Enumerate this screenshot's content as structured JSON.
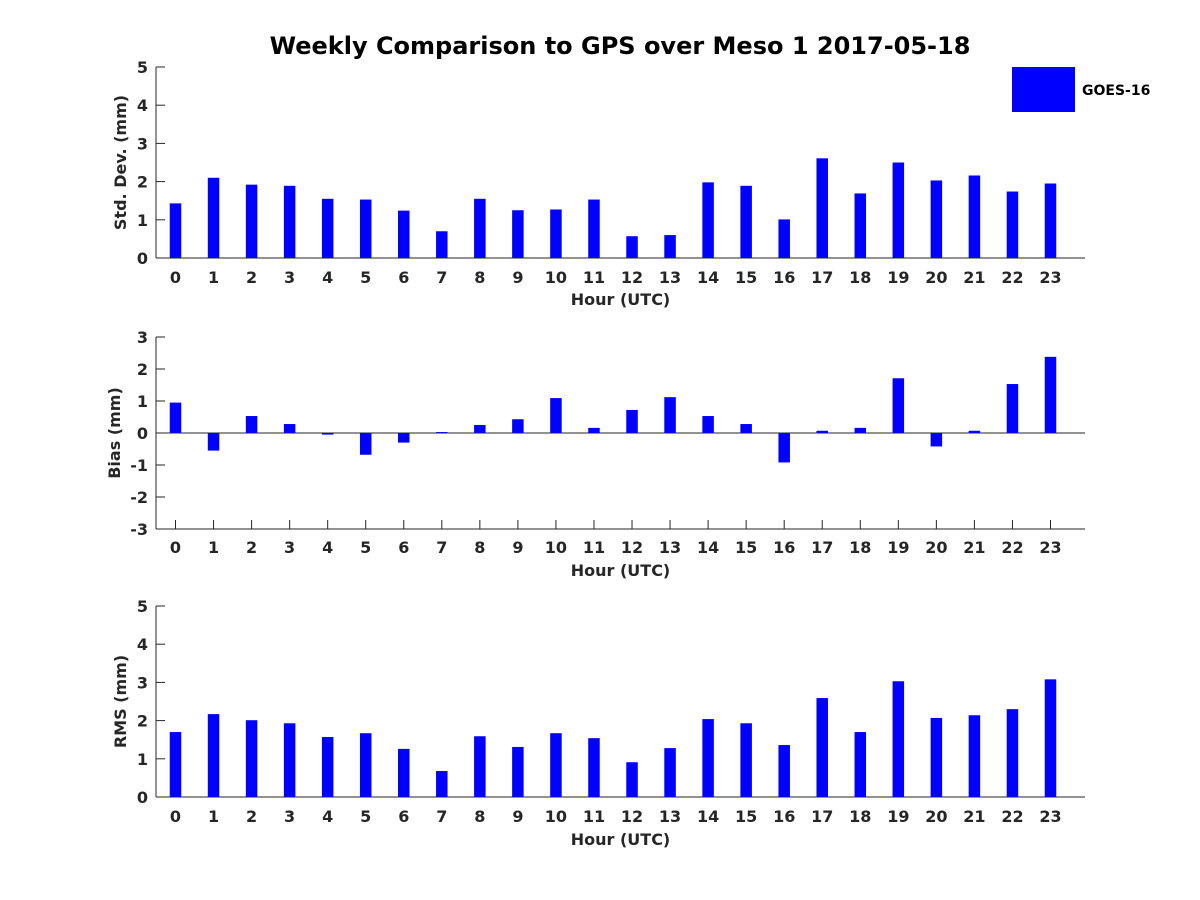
{
  "chart_data": {
    "title": "Weekly Comparison to GPS over Meso 1 2017-05-18",
    "legend": {
      "entries": [
        "GOES-16"
      ],
      "placement": "top-right"
    },
    "colors": {
      "series": "#0000ff",
      "axis": "#262626"
    },
    "panels": [
      {
        "id": "std",
        "type": "bar",
        "title": "",
        "xlabel": "Hour (UTC)",
        "ylabel": "Std. Dev. (mm)",
        "ylim": [
          0,
          5
        ],
        "yticks": [
          0,
          1,
          2,
          3,
          4,
          5
        ],
        "categories": [
          "0",
          "1",
          "2",
          "3",
          "4",
          "5",
          "6",
          "7",
          "8",
          "9",
          "10",
          "11",
          "12",
          "13",
          "14",
          "15",
          "16",
          "17",
          "18",
          "19",
          "20",
          "21",
          "22",
          "23"
        ],
        "series": [
          {
            "name": "GOES-16",
            "values": [
              1.43,
              2.1,
              1.92,
              1.89,
              1.55,
              1.53,
              1.24,
              0.7,
              1.55,
              1.25,
              1.27,
              1.53,
              0.57,
              0.6,
              1.98,
              1.89,
              1.01,
              2.61,
              1.69,
              2.5,
              2.03,
              2.16,
              1.74,
              1.95
            ]
          }
        ]
      },
      {
        "id": "bias",
        "type": "bar",
        "title": "",
        "xlabel": "Hour (UTC)",
        "ylabel": "Bias (mm)",
        "ylim": [
          -3,
          3
        ],
        "yticks": [
          -3,
          -2,
          -1,
          0,
          1,
          2,
          3
        ],
        "categories": [
          "0",
          "1",
          "2",
          "3",
          "4",
          "5",
          "6",
          "7",
          "8",
          "9",
          "10",
          "11",
          "12",
          "13",
          "14",
          "15",
          "16",
          "17",
          "18",
          "19",
          "20",
          "21",
          "22",
          "23"
        ],
        "series": [
          {
            "name": "GOES-16",
            "values": [
              0.95,
              -0.55,
              0.53,
              0.28,
              -0.05,
              -0.68,
              -0.3,
              0.03,
              0.25,
              0.43,
              1.09,
              0.16,
              0.72,
              1.12,
              0.53,
              0.28,
              -0.92,
              0.07,
              0.16,
              1.71,
              -0.42,
              0.07,
              1.53,
              2.38
            ]
          }
        ]
      },
      {
        "id": "rms",
        "type": "bar",
        "title": "",
        "xlabel": "Hour (UTC)",
        "ylabel": "RMS (mm)",
        "ylim": [
          0,
          5
        ],
        "yticks": [
          0,
          1,
          2,
          3,
          4,
          5
        ],
        "categories": [
          "0",
          "1",
          "2",
          "3",
          "4",
          "5",
          "6",
          "7",
          "8",
          "9",
          "10",
          "11",
          "12",
          "13",
          "14",
          "15",
          "16",
          "17",
          "18",
          "19",
          "20",
          "21",
          "22",
          "23"
        ],
        "series": [
          {
            "name": "GOES-16",
            "values": [
              1.7,
              2.17,
              2.01,
              1.93,
              1.57,
              1.67,
              1.26,
              0.68,
              1.59,
              1.31,
              1.67,
              1.54,
              0.91,
              1.28,
              2.04,
              1.93,
              1.36,
              2.59,
              1.7,
              3.03,
              2.07,
              2.14,
              2.3,
              3.08
            ]
          }
        ]
      }
    ]
  }
}
